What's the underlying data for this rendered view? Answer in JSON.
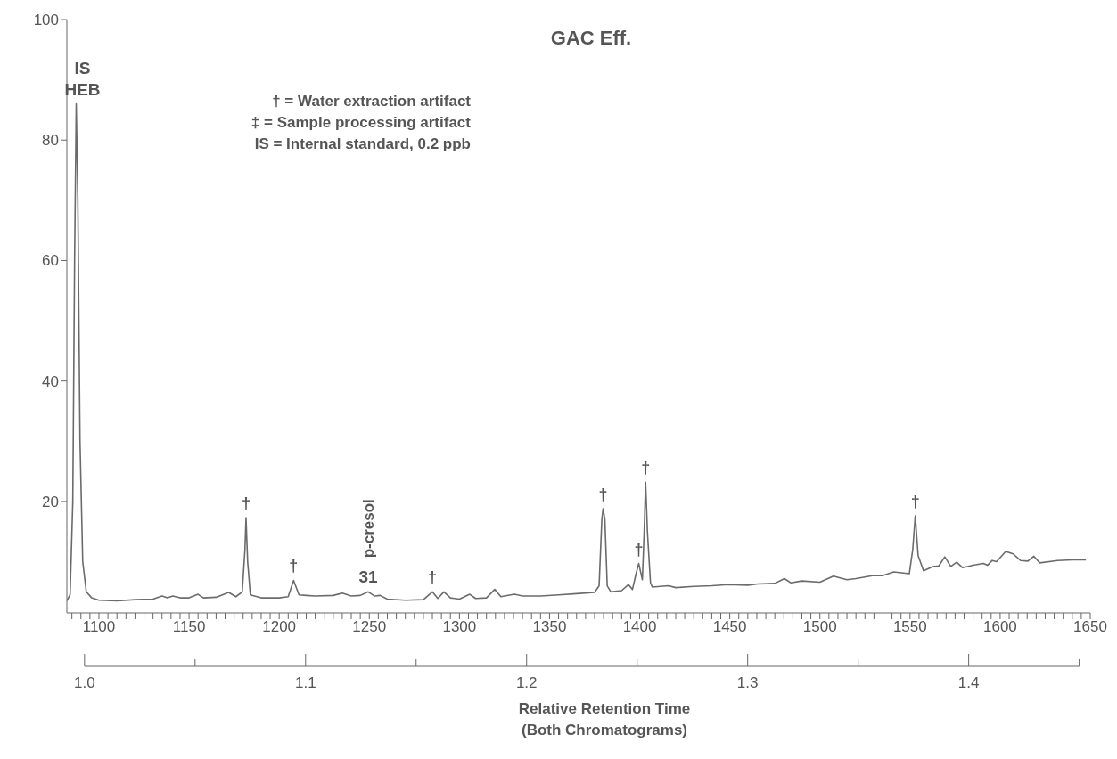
{
  "chart_data": {
    "type": "line",
    "title": "GAC Eff.",
    "x2label": "Relative Retention Time\n(Both Chromatograms)",
    "series": [
      {
        "color": "#6b6b6b",
        "x": [
          1082.2,
          1084,
          1085.5,
          1086.5,
          1087.4,
          1088.3,
          1089.5,
          1091,
          1093,
          1096,
          1100,
          1110,
          1120,
          1130,
          1135,
          1138,
          1141,
          1145,
          1150,
          1155,
          1158,
          1165,
          1172,
          1176,
          1179.5,
          1181,
          1181.6,
          1182.5,
          1184,
          1190,
          1200,
          1205,
          1208,
          1211,
          1215,
          1220,
          1230,
          1235,
          1240,
          1245,
          1249.4,
          1253,
          1256,
          1260,
          1270,
          1280,
          1285,
          1288,
          1291.4,
          1295,
          1300,
          1305.7,
          1309,
          1315,
          1319.6,
          1323,
          1330.5,
          1335,
          1345,
          1355,
          1365,
          1375,
          1377.5,
          1379,
          1379.7,
          1380.7,
          1382,
          1384,
          1390,
          1393.8,
          1396,
          1398,
          1399.5,
          1401.5,
          1402.5,
          1403.3,
          1404.3,
          1406,
          1407,
          1416,
          1420,
          1430,
          1440,
          1449,
          1460,
          1465.5,
          1475,
          1480.3,
          1483.8,
          1490,
          1500,
          1507.5,
          1515,
          1520,
          1529.8,
          1535,
          1541,
          1549.6,
          1551.5,
          1552.9,
          1554.5,
          1557.5,
          1562.7,
          1566,
          1569.3,
          1572.6,
          1575.9,
          1579.2,
          1585,
          1590.7,
          1593,
          1595.6,
          1598,
          1603.1,
          1607.2,
          1611.3,
          1615.4,
          1618.7,
          1622,
          1631.9,
          1640,
          1647.6
        ],
        "values": [
          3.5,
          4.5,
          20,
          60,
          86,
          70,
          30,
          10,
          5,
          4,
          3.6,
          3.5,
          3.7,
          3.8,
          4.3,
          4.0,
          4.3,
          4.0,
          4.0,
          4.6,
          4.0,
          4.1,
          4.9,
          4.2,
          5,
          12,
          17.3,
          10,
          4.5,
          4.0,
          4.0,
          4.2,
          6.9,
          4.5,
          4.4,
          4.3,
          4.4,
          4.8,
          4.3,
          4.4,
          5.0,
          4.3,
          4.4,
          3.8,
          3.6,
          3.7,
          5.0,
          3.9,
          5.0,
          4.0,
          3.8,
          4.6,
          3.9,
          4.0,
          5.4,
          4.2,
          4.6,
          4.3,
          4.3,
          4.5,
          4.7,
          4.9,
          6,
          17,
          18.8,
          17,
          6,
          5.0,
          5.2,
          6.2,
          5.4,
          8,
          9.7,
          7.0,
          15,
          23.2,
          15,
          6.5,
          5.8,
          6.0,
          5.7,
          5.9,
          6.0,
          6.2,
          6.1,
          6.3,
          6.4,
          7.2,
          6.5,
          6.8,
          6.6,
          7.6,
          7.0,
          7.2,
          7.7,
          7.7,
          8.3,
          8.0,
          12,
          17.6,
          11,
          8.5,
          9.2,
          9.3,
          10.8,
          9.2,
          9.9,
          9.0,
          9.4,
          9.7,
          9.4,
          10.2,
          10.0,
          11.7,
          11.3,
          10.2,
          10.1,
          10.9,
          9.8,
          10.2,
          10.3,
          10.3
        ]
      }
    ],
    "xlim": [
      1082.2,
      1650
    ],
    "xticks": [
      {
        "value": 1085,
        "label": null
      },
      {
        "value": 1090,
        "label": null
      },
      {
        "value": 1095,
        "label": null
      },
      1100,
      {
        "value": 1105,
        "label": null
      },
      {
        "value": 1110,
        "label": null
      },
      {
        "value": 1115,
        "label": null
      },
      {
        "value": 1120,
        "label": null
      },
      {
        "value": 1125,
        "label": null
      },
      {
        "value": 1130,
        "label": null
      },
      {
        "value": 1135,
        "label": null
      },
      {
        "value": 1140,
        "label": null
      },
      {
        "value": 1145,
        "label": null
      },
      1150,
      {
        "value": 1155,
        "label": null
      },
      {
        "value": 1160,
        "label": null
      },
      {
        "value": 1165,
        "label": null
      },
      {
        "value": 1170,
        "label": null
      },
      {
        "value": 1175,
        "label": null
      },
      {
        "value": 1180,
        "label": null
      },
      {
        "value": 1185,
        "label": null
      },
      {
        "value": 1190,
        "label": null
      },
      {
        "value": 1195,
        "label": null
      },
      1200,
      {
        "value": 1205,
        "label": null
      },
      {
        "value": 1210,
        "label": null
      },
      {
        "value": 1215,
        "label": null
      },
      {
        "value": 1220,
        "label": null
      },
      {
        "value": 1225,
        "label": null
      },
      {
        "value": 1230,
        "label": null
      },
      {
        "value": 1235,
        "label": null
      },
      {
        "value": 1240,
        "label": null
      },
      {
        "value": 1245,
        "label": null
      },
      1250,
      {
        "value": 1255,
        "label": null
      },
      {
        "value": 1260,
        "label": null
      },
      {
        "value": 1265,
        "label": null
      },
      {
        "value": 1270,
        "label": null
      },
      {
        "value": 1275,
        "label": null
      },
      {
        "value": 1280,
        "label": null
      },
      {
        "value": 1285,
        "label": null
      },
      {
        "value": 1290,
        "label": null
      },
      {
        "value": 1295,
        "label": null
      },
      1300,
      {
        "value": 1305,
        "label": null
      },
      {
        "value": 1310,
        "label": null
      },
      {
        "value": 1315,
        "label": null
      },
      {
        "value": 1320,
        "label": null
      },
      {
        "value": 1325,
        "label": null
      },
      {
        "value": 1330,
        "label": null
      },
      {
        "value": 1335,
        "label": null
      },
      {
        "value": 1340,
        "label": null
      },
      {
        "value": 1345,
        "label": null
      },
      1350,
      {
        "value": 1355,
        "label": null
      },
      {
        "value": 1360,
        "label": null
      },
      {
        "value": 1365,
        "label": null
      },
      {
        "value": 1370,
        "label": null
      },
      {
        "value": 1375,
        "label": null
      },
      {
        "value": 1380,
        "label": null
      },
      {
        "value": 1385,
        "label": null
      },
      {
        "value": 1390,
        "label": null
      },
      {
        "value": 1395,
        "label": null
      },
      1400,
      {
        "value": 1405,
        "label": null
      },
      {
        "value": 1410,
        "label": null
      },
      {
        "value": 1415,
        "label": null
      },
      {
        "value": 1420,
        "label": null
      },
      {
        "value": 1425,
        "label": null
      },
      {
        "value": 1430,
        "label": null
      },
      {
        "value": 1435,
        "label": null
      },
      {
        "value": 1440,
        "label": null
      },
      {
        "value": 1445,
        "label": null
      },
      1450,
      {
        "value": 1455,
        "label": null
      },
      {
        "value": 1460,
        "label": null
      },
      {
        "value": 1465,
        "label": null
      },
      {
        "value": 1470,
        "label": null
      },
      {
        "value": 1475,
        "label": null
      },
      {
        "value": 1480,
        "label": null
      },
      {
        "value": 1485,
        "label": null
      },
      {
        "value": 1490,
        "label": null
      },
      {
        "value": 1495,
        "label": null
      },
      1500,
      {
        "value": 1505,
        "label": null
      },
      {
        "value": 1510,
        "label": null
      },
      {
        "value": 1515,
        "label": null
      },
      {
        "value": 1520,
        "label": null
      },
      {
        "value": 1525,
        "label": null
      },
      {
        "value": 1530,
        "label": null
      },
      {
        "value": 1535,
        "label": null
      },
      {
        "value": 1540,
        "label": null
      },
      {
        "value": 1545,
        "label": null
      },
      1550,
      {
        "value": 1555,
        "label": null
      },
      {
        "value": 1560,
        "label": null
      },
      {
        "value": 1565,
        "label": null
      },
      {
        "value": 1570,
        "label": null
      },
      {
        "value": 1575,
        "label": null
      },
      {
        "value": 1580,
        "label": null
      },
      {
        "value": 1585,
        "label": null
      },
      {
        "value": 1590,
        "label": null
      },
      {
        "value": 1595,
        "label": null
      },
      1600,
      {
        "value": 1605,
        "label": null
      },
      {
        "value": 1610,
        "label": null
      },
      {
        "value": 1615,
        "label": null
      },
      {
        "value": 1620,
        "label": null
      },
      {
        "value": 1625,
        "label": null
      },
      {
        "value": 1630,
        "label": null
      },
      {
        "value": 1635,
        "label": null
      },
      {
        "value": 1640,
        "label": null
      },
      {
        "value": 1645,
        "label": null
      },
      1650
    ],
    "x2lim": [
      0.992,
      1.455
    ],
    "x2ticks": [
      {
        "value": 1,
        "label": "1.0"
      },
      {
        "value": 1.05,
        "label": null
      },
      1.1,
      {
        "value": 1.15,
        "label": null
      },
      1.2,
      {
        "value": 1.25,
        "label": null
      },
      1.3,
      {
        "value": 1.35,
        "label": null
      },
      1.4,
      {
        "value": 1.45,
        "label": null
      }
    ],
    "ylim": [
      1.5,
      100
    ],
    "yticks": [
      20,
      40,
      60,
      80,
      100
    ],
    "annotations": [
      "† = Water extraction artifact",
      "‡ = Sample processing artifact",
      "IS = Internal standard, 0.2 ppb",
      {
        "text": "IS\nHEB",
        "x": 1087.4,
        "y": 86
      },
      {
        "text": "†",
        "x": 1181.6,
        "y": 17.3
      },
      {
        "text": "†",
        "x": 1208,
        "y": 6.9
      },
      {
        "text": "31",
        "x": 1249.4,
        "y": 5.0
      },
      {
        "text": "p-cresol",
        "x": 1249.4,
        "y": 5.0
      },
      {
        "text": "†",
        "x": 1285,
        "y": 5.0
      },
      {
        "text": "†",
        "x": 1379.7,
        "y": 18.8
      },
      {
        "text": "†",
        "x": 1399.5,
        "y": 9.7
      },
      {
        "text": "†",
        "x": 1403.3,
        "y": 23.2
      },
      {
        "text": "†",
        "x": 1552.9,
        "y": 17.6
      }
    ]
  }
}
